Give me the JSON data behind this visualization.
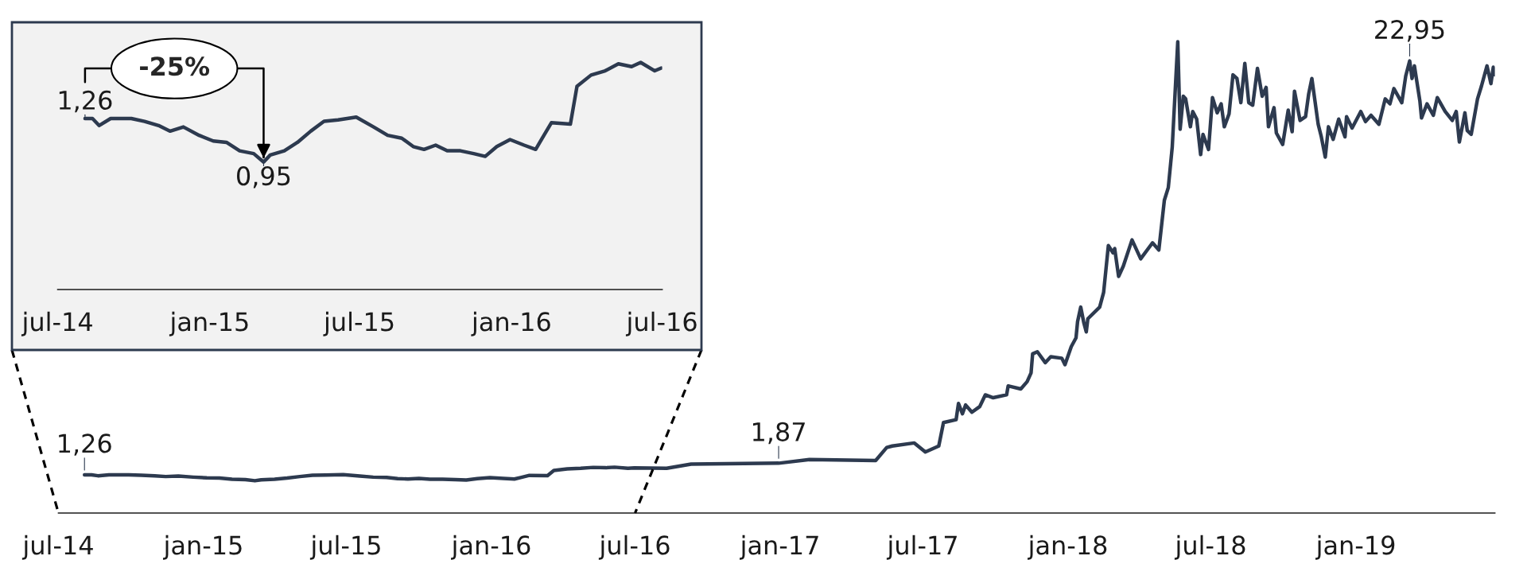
{
  "chart_data": [
    {
      "type": "line",
      "xlim": [
        "2014-07-01",
        "2019-06-26"
      ],
      "xticks": [
        {
          "value": "2014-07-01",
          "label": "jul-14"
        },
        {
          "value": "2015-01-01",
          "label": "jan-15"
        },
        {
          "value": "2015-07-01",
          "label": "jul-15"
        },
        {
          "value": "2016-01-01",
          "label": "jan-16"
        },
        {
          "value": "2016-07-01",
          "label": "jul-16"
        },
        {
          "value": "2017-01-01",
          "label": "jan-17"
        },
        {
          "value": "2017-07-01",
          "label": "jul-17"
        },
        {
          "value": "2018-01-01",
          "label": "jan-18"
        },
        {
          "value": "2018-07-01",
          "label": "jul-18"
        },
        {
          "value": "2019-01-01",
          "label": "jan-19"
        }
      ],
      "tick_labels": "x",
      "grid": false,
      "legend": false,
      "marker": "none",
      "line_style": "solid",
      "series": [
        {
          "color": "#2d3a4f",
          "x": [
            "2014-08-03",
            "2014-08-12",
            "2014-08-20",
            "2014-09-03",
            "2014-09-28",
            "2014-10-14",
            "2014-10-31",
            "2014-11-14",
            "2014-11-30",
            "2014-12-19",
            "2015-01-05",
            "2015-01-21",
            "2015-02-06",
            "2015-02-23",
            "2015-03-07",
            "2015-03-15",
            "2015-04-01",
            "2015-04-17",
            "2015-05-03",
            "2015-05-19",
            "2015-06-05",
            "2015-06-27",
            "2015-07-18",
            "2015-08-04",
            "2015-08-21",
            "2015-09-04",
            "2015-09-17",
            "2015-10-01",
            "2015-10-15",
            "2015-10-31",
            "2015-11-16",
            "2015-11-30",
            "2015-12-14",
            "2015-12-30",
            "2016-01-16",
            "2016-01-30",
            "2016-02-07",
            "2016-02-18",
            "2016-03-12",
            "2016-03-20",
            "2016-04-06",
            "2016-04-23",
            "2016-05-09",
            "2016-05-25",
            "2016-06-05",
            "2016-06-22",
            "2016-06-30",
            "2016-08-10",
            "2016-09-10",
            "2016-12-30",
            "2017-02-07",
            "2017-05-02",
            "2017-05-16",
            "2017-05-23",
            "2017-06-20",
            "2017-07-04",
            "2017-07-21",
            "2017-07-27",
            "2017-08-12",
            "2017-08-15",
            "2017-08-20",
            "2017-08-24",
            "2017-09-01",
            "2017-09-11",
            "2017-09-18",
            "2017-09-28",
            "2017-10-15",
            "2017-10-17",
            "2017-11-02",
            "2017-11-10",
            "2017-11-15",
            "2017-11-17",
            "2017-11-23",
            "2017-12-03",
            "2017-12-10",
            "2017-12-24",
            "2017-12-28",
            "2018-01-05",
            "2018-01-11",
            "2018-01-13",
            "2018-01-17",
            "2018-01-21",
            "2018-01-24",
            "2018-01-26",
            "2018-02-10",
            "2018-02-15",
            "2018-02-21",
            "2018-02-27",
            "2018-03-01",
            "2018-03-06",
            "2018-03-12",
            "2018-03-23",
            "2018-04-03",
            "2018-04-18",
            "2018-04-26",
            "2018-05-03",
            "2018-05-08",
            "2018-05-13",
            "2018-05-20",
            "2018-05-23",
            "2018-05-27",
            "2018-05-30",
            "2018-06-05",
            "2018-06-08",
            "2018-06-13",
            "2018-06-18",
            "2018-06-21",
            "2018-06-28",
            "2018-07-03",
            "2018-07-09",
            "2018-07-14",
            "2018-07-18",
            "2018-07-24",
            "2018-07-29",
            "2018-08-03",
            "2018-08-08",
            "2018-08-13",
            "2018-08-18",
            "2018-08-23",
            "2018-08-29",
            "2018-09-04",
            "2018-09-09",
            "2018-09-12",
            "2018-09-19",
            "2018-09-22",
            "2018-09-30",
            "2018-10-07",
            "2018-10-12",
            "2018-10-15",
            "2018-10-22",
            "2018-10-29",
            "2018-11-02",
            "2018-11-06",
            "2018-11-14",
            "2018-11-18",
            "2018-11-23",
            "2018-11-27",
            "2018-12-03",
            "2018-12-10",
            "2018-12-18",
            "2018-12-20",
            "2018-12-27",
            "2019-01-07",
            "2019-01-13",
            "2019-01-20",
            "2019-01-30",
            "2019-02-07",
            "2019-02-13",
            "2019-02-18",
            "2019-02-28",
            "2019-03-05",
            "2019-03-10",
            "2019-03-13",
            "2019-03-16",
            "2019-03-23",
            "2019-03-25",
            "2019-04-01",
            "2019-04-09",
            "2019-04-14",
            "2019-04-24",
            "2019-05-03",
            "2019-05-08",
            "2019-05-12",
            "2019-05-19",
            "2019-05-22",
            "2019-05-27",
            "2019-06-04",
            "2019-06-09",
            "2019-06-16",
            "2019-06-21",
            "2019-06-24",
            "2019-06-26"
          ],
          "values": [
            1.26,
            1.26,
            1.21,
            1.26,
            1.26,
            1.24,
            1.21,
            1.17,
            1.2,
            1.14,
            1.1,
            1.09,
            1.03,
            1.01,
            0.95,
            1.0,
            1.03,
            1.09,
            1.17,
            1.24,
            1.25,
            1.27,
            1.2,
            1.14,
            1.12,
            1.06,
            1.04,
            1.07,
            1.03,
            1.03,
            1.01,
            0.99,
            1.06,
            1.11,
            1.07,
            1.04,
            1.12,
            1.23,
            1.22,
            1.49,
            1.57,
            1.6,
            1.65,
            1.63,
            1.66,
            1.6,
            1.62,
            1.6,
            1.82,
            1.87,
            2.06,
            2.01,
            2.69,
            2.77,
            2.93,
            2.46,
            2.77,
            4.0,
            4.15,
            5.0,
            4.46,
            4.92,
            4.54,
            4.84,
            5.45,
            5.3,
            5.45,
            5.92,
            5.76,
            6.14,
            6.6,
            7.6,
            7.71,
            7.14,
            7.45,
            7.37,
            7.03,
            7.98,
            8.44,
            9.29,
            10.05,
            9.21,
            8.75,
            9.44,
            10.05,
            10.82,
            13.27,
            12.89,
            13.12,
            11.66,
            12.2,
            13.57,
            12.58,
            13.42,
            13.04,
            15.65,
            16.31,
            18.44,
            23.95,
            19.37,
            21.1,
            20.96,
            19.5,
            20.3,
            19.9,
            18.04,
            19.1,
            18.31,
            21.03,
            20.23,
            20.7,
            19.5,
            20.17,
            22.22,
            22.03,
            20.76,
            22.82,
            20.76,
            20.63,
            22.56,
            21.1,
            21.56,
            19.5,
            20.5,
            19.17,
            18.57,
            20.37,
            19.24,
            21.36,
            19.83,
            20.03,
            21.23,
            22.03,
            19.63,
            18.97,
            17.91,
            19.5,
            18.84,
            19.9,
            18.97,
            20.03,
            19.43,
            20.3,
            19.77,
            20.1,
            19.63,
            20.96,
            20.7,
            21.5,
            20.76,
            22.16,
            22.95,
            22.03,
            22.69,
            20.83,
            19.96,
            20.7,
            20.1,
            21.03,
            20.3,
            19.83,
            20.3,
            18.7,
            20.23,
            19.3,
            19.1,
            20.96,
            21.63,
            22.69,
            21.76,
            22.62,
            22.22
          ],
          "value_labels": [
            "1,26",
            null,
            null,
            null,
            null,
            null,
            null,
            null,
            null,
            null,
            null,
            null,
            null,
            null,
            null,
            null,
            null,
            null,
            null,
            null,
            null,
            null,
            null,
            null,
            null,
            null,
            null,
            null,
            null,
            null,
            null,
            null,
            null,
            null,
            null,
            null,
            null,
            null,
            null,
            null,
            null,
            null,
            null,
            null,
            null,
            null,
            null,
            null,
            null,
            "1,87",
            null,
            null,
            null,
            null,
            null,
            null,
            null,
            null,
            null,
            null,
            null,
            null,
            null,
            null,
            null,
            null,
            null,
            null,
            null,
            null,
            null,
            null,
            null,
            null,
            null,
            null,
            null,
            null,
            null,
            null,
            null,
            null,
            null,
            null,
            null,
            null,
            null,
            null,
            null,
            null,
            null,
            null,
            null,
            null,
            null,
            null,
            null,
            null,
            null,
            null,
            null,
            null,
            null,
            null,
            null,
            null,
            null,
            null,
            null,
            null,
            null,
            null,
            null,
            null,
            null,
            null,
            null,
            null,
            null,
            null,
            null,
            null,
            null,
            null,
            null,
            null,
            null,
            null,
            null,
            null,
            null,
            null,
            null,
            null,
            null,
            null,
            null,
            null,
            null,
            null,
            null,
            null,
            null,
            null,
            null,
            null,
            null,
            null,
            null,
            null,
            null,
            "22,95",
            null,
            null,
            null,
            null,
            null,
            null,
            null,
            null,
            null,
            null,
            null,
            null,
            null,
            null,
            null,
            null,
            null,
            null,
            null,
            null
          ]
        }
      ]
    },
    {
      "type": "line",
      "xlim": [
        "2014-07-01",
        "2016-07-01"
      ],
      "xticks": [
        {
          "value": "2014-07-01",
          "label": "jul-14"
        },
        {
          "value": "2015-01-01",
          "label": "jan-15"
        },
        {
          "value": "2015-07-01",
          "label": "jul-15"
        },
        {
          "value": "2016-01-01",
          "label": "jan-16"
        },
        {
          "value": "2016-07-01",
          "label": "jul-16"
        }
      ],
      "tick_labels": "x",
      "grid": false,
      "legend": false,
      "marker": "none",
      "line_style": "solid",
      "annotations": [
        "-25%"
      ],
      "series": [
        {
          "color": "#2d3a4f",
          "x": [
            "2014-08-03",
            "2014-08-12",
            "2014-08-20",
            "2014-09-03",
            "2014-09-28",
            "2014-10-14",
            "2014-10-31",
            "2014-11-14",
            "2014-11-30",
            "2014-12-19",
            "2015-01-05",
            "2015-01-21",
            "2015-02-06",
            "2015-02-23",
            "2015-03-07",
            "2015-03-15",
            "2015-04-01",
            "2015-04-17",
            "2015-05-03",
            "2015-05-19",
            "2015-06-05",
            "2015-06-27",
            "2015-07-18",
            "2015-08-04",
            "2015-08-21",
            "2015-09-04",
            "2015-09-17",
            "2015-10-01",
            "2015-10-15",
            "2015-10-31",
            "2015-11-16",
            "2015-11-30",
            "2015-12-14",
            "2015-12-30",
            "2016-01-16",
            "2016-01-30",
            "2016-02-07",
            "2016-02-18",
            "2016-03-12",
            "2016-03-20",
            "2016-04-06",
            "2016-04-23",
            "2016-05-09",
            "2016-05-25",
            "2016-06-05",
            "2016-06-22",
            "2016-06-30"
          ],
          "values": [
            1.26,
            1.26,
            1.21,
            1.26,
            1.26,
            1.24,
            1.21,
            1.17,
            1.2,
            1.14,
            1.1,
            1.09,
            1.03,
            1.01,
            0.95,
            1.0,
            1.03,
            1.09,
            1.17,
            1.24,
            1.25,
            1.27,
            1.2,
            1.14,
            1.12,
            1.06,
            1.04,
            1.07,
            1.03,
            1.03,
            1.01,
            0.99,
            1.06,
            1.11,
            1.07,
            1.04,
            1.12,
            1.23,
            1.22,
            1.49,
            1.57,
            1.6,
            1.65,
            1.63,
            1.66,
            1.6,
            1.62
          ],
          "value_labels": [
            "1,26",
            null,
            null,
            null,
            null,
            null,
            null,
            null,
            null,
            null,
            null,
            null,
            null,
            null,
            "0,95",
            null,
            null,
            null,
            null,
            null,
            null,
            null,
            null,
            null,
            null,
            null,
            null,
            null,
            null,
            null,
            null,
            null,
            null,
            null,
            null,
            null,
            null,
            null,
            null,
            null,
            null,
            null,
            null,
            null,
            null,
            null,
            null
          ]
        }
      ]
    }
  ]
}
